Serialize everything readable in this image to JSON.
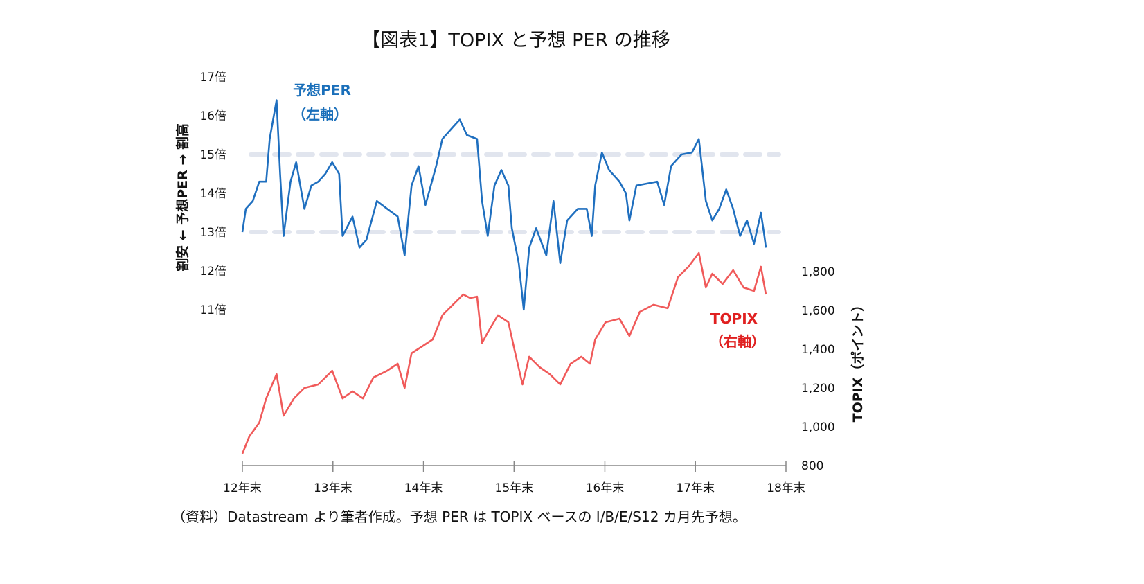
{
  "chart_data": {
    "type": "line",
    "title": "【図表1】TOPIX と予想 PER の推移",
    "source": "（資料）Datastream より筆者作成。予想 PER は TOPIX ベースの I/B/E/S12 カ月先予想。",
    "x_tick_labels": [
      "12年末",
      "13年末",
      "14年末",
      "15年末",
      "16年末",
      "17年末",
      "18年末"
    ],
    "x_ticks": [
      "2012-12-31",
      "2013-12-31",
      "2014-12-31",
      "2015-12-31",
      "2016-12-31",
      "2017-12-31",
      "2018-12-31"
    ],
    "xlim": [
      "2012-12-31",
      "2018-12-31"
    ],
    "left_axis": {
      "label": "割安 ← 予想PER → 割高",
      "ylim": [
        11,
        17
      ],
      "tick_labels": [
        "17倍",
        "16倍",
        "15倍",
        "14倍",
        "13倍",
        "12倍",
        "11倍"
      ],
      "ticks": [
        17,
        16,
        15,
        14,
        13,
        12,
        11
      ],
      "reference_lines": [
        15,
        13
      ]
    },
    "right_axis": {
      "label": "TOPIX（ポイント）",
      "ylim": [
        800,
        2800
      ],
      "tick_labels": [
        "1,800",
        "1,600",
        "1,400",
        "1,200",
        "1,000",
        "800"
      ],
      "ticks": [
        1800,
        1600,
        1400,
        1200,
        1000,
        800
      ]
    },
    "grid": false,
    "series": [
      {
        "name": "予想PER",
        "axis_note": "（左軸）",
        "axis": "left",
        "color": "#1f6fbf",
        "points": [
          [
            "2012-12-31",
            13.0
          ],
          [
            "2013-01-14",
            13.6
          ],
          [
            "2013-02-11",
            13.8
          ],
          [
            "2013-03-09",
            14.3
          ],
          [
            "2013-04-06",
            14.3
          ],
          [
            "2013-04-20",
            15.4
          ],
          [
            "2013-05-18",
            16.4
          ],
          [
            "2013-06-01",
            14.5
          ],
          [
            "2013-06-15",
            12.9
          ],
          [
            "2013-07-13",
            14.3
          ],
          [
            "2013-08-05",
            14.8
          ],
          [
            "2013-09-07",
            13.6
          ],
          [
            "2013-10-05",
            14.2
          ],
          [
            "2013-11-02",
            14.3
          ],
          [
            "2013-11-30",
            14.5
          ],
          [
            "2013-12-28",
            14.8
          ],
          [
            "2014-01-25",
            14.5
          ],
          [
            "2014-02-08",
            12.9
          ],
          [
            "2014-03-20",
            13.4
          ],
          [
            "2014-04-17",
            12.6
          ],
          [
            "2014-05-15",
            12.8
          ],
          [
            "2014-06-26",
            13.8
          ],
          [
            "2014-08-07",
            13.6
          ],
          [
            "2014-09-18",
            13.4
          ],
          [
            "2014-10-16",
            12.4
          ],
          [
            "2014-11-13",
            14.2
          ],
          [
            "2014-12-11",
            14.7
          ],
          [
            "2015-01-08",
            13.7
          ],
          [
            "2015-02-20",
            14.7
          ],
          [
            "2015-03-17",
            15.4
          ],
          [
            "2015-04-28",
            15.7
          ],
          [
            "2015-05-26",
            15.9
          ],
          [
            "2015-06-24",
            15.5
          ],
          [
            "2015-08-04",
            15.4
          ],
          [
            "2015-08-24",
            13.8
          ],
          [
            "2015-09-16",
            12.9
          ],
          [
            "2015-10-13",
            14.2
          ],
          [
            "2015-11-10",
            14.6
          ],
          [
            "2015-12-08",
            14.2
          ],
          [
            "2015-12-22",
            13.1
          ],
          [
            "2016-01-19",
            12.2
          ],
          [
            "2016-02-08",
            11.0
          ],
          [
            "2016-03-01",
            12.6
          ],
          [
            "2016-03-29",
            13.1
          ],
          [
            "2016-05-09",
            12.4
          ],
          [
            "2016-06-07",
            13.8
          ],
          [
            "2016-07-04",
            12.2
          ],
          [
            "2016-08-01",
            13.3
          ],
          [
            "2016-09-13",
            13.6
          ],
          [
            "2016-10-19",
            13.6
          ],
          [
            "2016-11-08",
            12.9
          ],
          [
            "2016-11-22",
            14.2
          ],
          [
            "2016-12-19",
            15.05
          ],
          [
            "2017-01-17",
            14.6
          ],
          [
            "2017-02-28",
            14.3
          ],
          [
            "2017-03-26",
            14.0
          ],
          [
            "2017-04-09",
            13.3
          ],
          [
            "2017-05-07",
            14.2
          ],
          [
            "2017-06-18",
            14.25
          ],
          [
            "2017-07-30",
            14.3
          ],
          [
            "2017-08-27",
            13.7
          ],
          [
            "2017-09-24",
            14.7
          ],
          [
            "2017-11-05",
            15.0
          ],
          [
            "2017-12-17",
            15.05
          ],
          [
            "2018-01-14",
            15.4
          ],
          [
            "2018-02-11",
            13.8
          ],
          [
            "2018-03-09",
            13.3
          ],
          [
            "2018-04-06",
            13.6
          ],
          [
            "2018-05-04",
            14.1
          ],
          [
            "2018-06-01",
            13.6
          ],
          [
            "2018-06-29",
            12.9
          ],
          [
            "2018-07-27",
            13.3
          ],
          [
            "2018-08-24",
            12.7
          ],
          [
            "2018-09-21",
            13.5
          ],
          [
            "2018-10-05",
            12.9
          ],
          [
            "2018-10-11",
            12.6
          ]
        ]
      },
      {
        "name": "TOPIX",
        "axis_note": "（右軸）",
        "axis": "right",
        "color": "#f05a5a",
        "points": [
          [
            "2012-12-31",
            861
          ],
          [
            "2013-01-28",
            950
          ],
          [
            "2013-03-09",
            1021
          ],
          [
            "2013-04-06",
            1146
          ],
          [
            "2013-05-18",
            1271
          ],
          [
            "2013-06-15",
            1057
          ],
          [
            "2013-07-27",
            1146
          ],
          [
            "2013-09-07",
            1200
          ],
          [
            "2013-11-02",
            1218
          ],
          [
            "2013-12-28",
            1289
          ],
          [
            "2014-02-08",
            1146
          ],
          [
            "2014-03-20",
            1182
          ],
          [
            "2014-05-01",
            1146
          ],
          [
            "2014-06-12",
            1254
          ],
          [
            "2014-08-07",
            1289
          ],
          [
            "2014-09-18",
            1325
          ],
          [
            "2014-10-16",
            1200
          ],
          [
            "2014-11-13",
            1379
          ],
          [
            "2014-12-25",
            1414
          ],
          [
            "2015-02-06",
            1450
          ],
          [
            "2015-03-17",
            1575
          ],
          [
            "2015-05-12",
            1646
          ],
          [
            "2015-06-09",
            1682
          ],
          [
            "2015-07-07",
            1664
          ],
          [
            "2015-08-04",
            1671
          ],
          [
            "2015-08-24",
            1432
          ],
          [
            "2015-09-16",
            1486
          ],
          [
            "2015-10-27",
            1575
          ],
          [
            "2015-12-08",
            1539
          ],
          [
            "2016-01-05",
            1379
          ],
          [
            "2016-02-03",
            1218
          ],
          [
            "2016-03-01",
            1361
          ],
          [
            "2016-04-12",
            1307
          ],
          [
            "2016-05-23",
            1271
          ],
          [
            "2016-07-04",
            1218
          ],
          [
            "2016-08-15",
            1325
          ],
          [
            "2016-09-27",
            1361
          ],
          [
            "2016-11-01",
            1325
          ],
          [
            "2016-11-22",
            1450
          ],
          [
            "2017-01-03",
            1539
          ],
          [
            "2017-02-28",
            1557
          ],
          [
            "2017-04-09",
            1468
          ],
          [
            "2017-05-21",
            1593
          ],
          [
            "2017-07-15",
            1629
          ],
          [
            "2017-09-10",
            1611
          ],
          [
            "2017-10-22",
            1771
          ],
          [
            "2017-12-03",
            1825
          ],
          [
            "2018-01-14",
            1896
          ],
          [
            "2018-02-11",
            1718
          ],
          [
            "2018-03-09",
            1789
          ],
          [
            "2018-04-20",
            1736
          ],
          [
            "2018-06-01",
            1807
          ],
          [
            "2018-07-13",
            1718
          ],
          [
            "2018-08-24",
            1700
          ],
          [
            "2018-09-21",
            1825
          ],
          [
            "2018-10-11",
            1682
          ]
        ]
      }
    ]
  }
}
